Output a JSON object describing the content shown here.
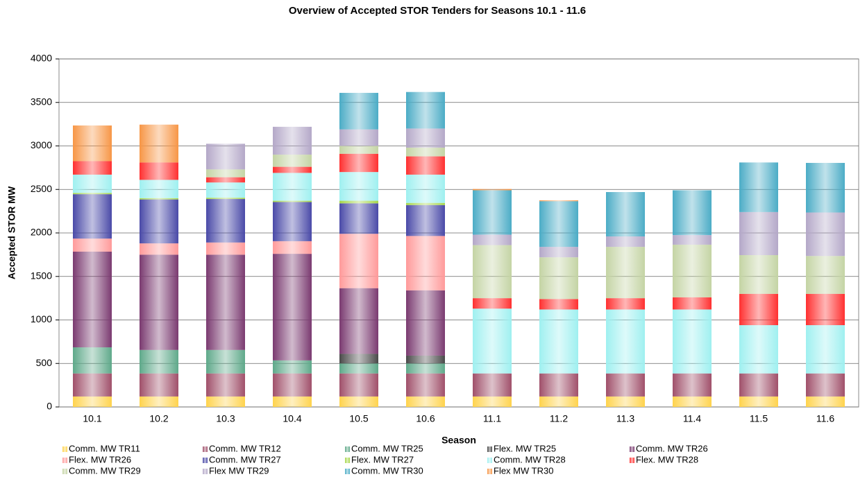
{
  "chart_data": {
    "type": "stacked_bar",
    "title": "Overview of Accepted STOR Tenders for Seasons 10.1 - 11.6",
    "x_label": "Season",
    "y_label": "Accepted STOR MW",
    "categories": [
      "10.1",
      "10.2",
      "10.3",
      "10.4",
      "10.5",
      "10.6",
      "11.1",
      "11.2",
      "11.3",
      "11.4",
      "11.5",
      "11.6"
    ],
    "ylim": [
      0,
      4000
    ],
    "yticks": [
      0,
      500,
      1000,
      1500,
      2000,
      2500,
      3000,
      3500,
      4000
    ],
    "grid": true,
    "series": [
      {
        "name": "Comm. MW TR11",
        "color": "#ffd34d",
        "values": [
          120,
          120,
          120,
          120,
          120,
          120,
          120,
          120,
          120,
          120,
          120,
          120
        ]
      },
      {
        "name": "Comm. MW TR12",
        "color": "#a0506a",
        "values": [
          265,
          265,
          265,
          265,
          265,
          265,
          265,
          265,
          265,
          265,
          265,
          265
        ]
      },
      {
        "name": "Comm. MW TR25",
        "color": "#5fa98a",
        "values": [
          300,
          270,
          270,
          150,
          115,
          115,
          0,
          0,
          0,
          0,
          0,
          0
        ]
      },
      {
        "name": "Flex. MW TR25",
        "color": "#4a4a4a",
        "values": [
          0,
          0,
          0,
          0,
          110,
          90,
          0,
          0,
          0,
          0,
          0,
          0
        ]
      },
      {
        "name": "Comm. MW TR26",
        "color": "#7a3a70",
        "values": [
          1100,
          1095,
          1095,
          1225,
          755,
          750,
          0,
          0,
          0,
          0,
          0,
          0
        ]
      },
      {
        "name": "Flex. MW TR26",
        "color": "#ff9a9a",
        "values": [
          150,
          130,
          140,
          145,
          625,
          625,
          0,
          0,
          0,
          0,
          0,
          0
        ]
      },
      {
        "name": "Comm. MW TR27",
        "color": "#4a4aa8",
        "values": [
          510,
          505,
          500,
          450,
          350,
          355,
          0,
          0,
          0,
          0,
          0,
          0
        ]
      },
      {
        "name": "Flex. MW TR27",
        "color": "#a6d64a",
        "values": [
          15,
          15,
          15,
          15,
          30,
          25,
          0,
          0,
          0,
          0,
          0,
          0
        ]
      },
      {
        "name": "Comm. MW TR28",
        "color": "#9ff0f0",
        "values": [
          210,
          210,
          175,
          320,
          330,
          325,
          745,
          735,
          735,
          735,
          555,
          555
        ]
      },
      {
        "name": "Flex. MW TR28",
        "color": "#ff3030",
        "values": [
          155,
          200,
          60,
          70,
          210,
          210,
          120,
          120,
          130,
          140,
          360,
          360
        ]
      },
      {
        "name": "Comm. MW TR29",
        "color": "#c4d4a4",
        "values": [
          0,
          0,
          90,
          140,
          90,
          100,
          610,
          480,
          590,
          605,
          445,
          435
        ]
      },
      {
        "name": "Flex MW TR29",
        "color": "#b4a8c8",
        "values": [
          0,
          0,
          295,
          320,
          190,
          220,
          120,
          120,
          120,
          110,
          495,
          500
        ]
      },
      {
        "name": "Comm. MW TR30",
        "color": "#4bacc6",
        "values": [
          0,
          0,
          0,
          0,
          420,
          420,
          510,
          525,
          510,
          515,
          570,
          570
        ]
      },
      {
        "name": "Flex MW TR30",
        "color": "#f79646",
        "values": [
          410,
          435,
          0,
          0,
          0,
          0,
          15,
          10,
          0,
          0,
          0,
          0
        ]
      }
    ]
  }
}
